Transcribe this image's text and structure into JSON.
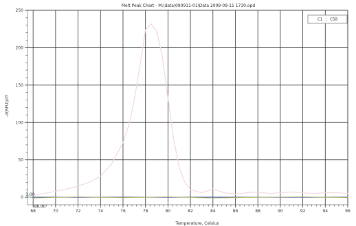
{
  "chart_data": {
    "type": "line",
    "title": "Melt Peak Chart - M:\\data\\090911-01\\Data 2009-09-11 1730.opd",
    "xlabel": "Temperature, Celsius",
    "ylabel": "-d(RFU)/dT",
    "xlim": [
      67.5,
      96
    ],
    "ylim": [
      -10,
      250
    ],
    "grid": true,
    "legend_placement": "top-right",
    "x_ticks": [
      68,
      70,
      72,
      74,
      76,
      78,
      80,
      82,
      84,
      86,
      88,
      90,
      92,
      94,
      96
    ],
    "x_tick_labels": [
      "68",
      "70",
      "72",
      "74",
      "76",
      "78",
      "80",
      "82",
      "84",
      "86",
      "88",
      "90",
      "92",
      "94",
      "96"
    ],
    "y_ticks": [
      0,
      50,
      100,
      150,
      200,
      250
    ],
    "y_tick_labels": [
      "0",
      "50",
      "100",
      "150",
      "200",
      "250"
    ],
    "annotations": [
      {
        "text": "1.00",
        "x": 68,
        "y": 1
      },
      {
        "text": "68.00",
        "x": 68,
        "y": -4
      }
    ],
    "legend": {
      "text": "C1 : C50"
    },
    "series": [
      {
        "name": "",
        "color": "#f0d8de",
        "x": [
          68,
          69,
          70,
          71,
          72,
          73,
          74,
          75,
          76,
          76.5,
          77,
          77.5,
          78,
          78.5,
          79,
          79.5,
          80,
          80.5,
          81,
          81.5,
          82,
          83,
          84,
          85,
          86,
          87,
          88,
          89,
          90,
          91,
          92,
          93,
          94,
          95,
          96
        ],
        "values": [
          3,
          5,
          8,
          11,
          15,
          20,
          28,
          45,
          73,
          95,
          130,
          175,
          224,
          232,
          222,
          188,
          132,
          78,
          40,
          20,
          10,
          6,
          11,
          6,
          4,
          6,
          7,
          5,
          6,
          7,
          6,
          5,
          6,
          6,
          5
        ]
      },
      {
        "name": "",
        "color": "#3e4ea8",
        "x": [
          68,
          72,
          76,
          80,
          84,
          88,
          92,
          96
        ],
        "values": [
          0,
          0,
          0,
          0,
          0,
          0,
          0,
          0
        ]
      },
      {
        "name": "",
        "color": "#b8bc62",
        "x": [
          68,
          72,
          76,
          80,
          84,
          88,
          92,
          96
        ],
        "values": [
          -1,
          0.5,
          -0.5,
          0.5,
          -1,
          0,
          0.5,
          -0.5
        ]
      }
    ]
  }
}
